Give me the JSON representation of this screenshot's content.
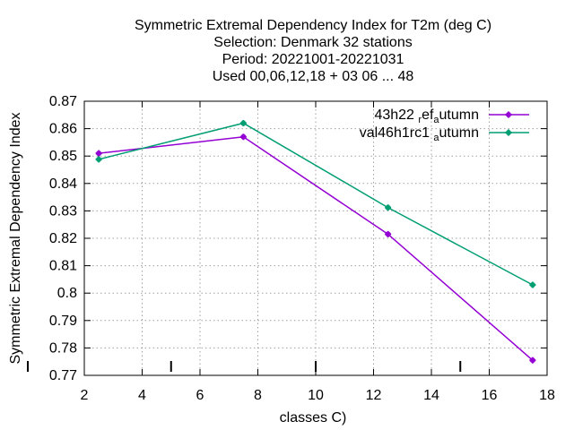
{
  "chart_data": {
    "type": "line",
    "title_lines": [
      "Symmetric Extremal Dependency Index  for T2m (deg C)",
      "Selection: Denmark     32 stations",
      "Period: 20221001-20221031",
      "Used  00,06,12,18  + 03 06 ... 48"
    ],
    "xlabel": "classes C)",
    "ylabel": "Symmetric Extremal Dependency Index",
    "xlim": [
      2,
      18
    ],
    "ylim": [
      0.77,
      0.87
    ],
    "xticks": [
      "2",
      "4",
      "6",
      "8",
      "10",
      "12",
      "14",
      "16",
      "18"
    ],
    "yticks": [
      "0.77",
      "0.78",
      "0.79",
      "0.8",
      "0.81",
      "0.82",
      "0.83",
      "0.84",
      "0.85",
      "0.86",
      "0.87"
    ],
    "grid": true,
    "legend_position": "top-right",
    "series": [
      {
        "name": "43h22",
        "name_sub1": "r",
        "name_mid": "ef",
        "name_sub2": "a",
        "name_end": "utumn",
        "color": "#9400d3",
        "x": [
          2.5,
          7.5,
          12.5,
          17.5
        ],
        "y": [
          0.851,
          0.857,
          0.8215,
          0.7755
        ]
      },
      {
        "name": "val46h1rc1",
        "name_sub1": "",
        "name_mid": "",
        "name_sub2": "a",
        "name_end": "utumn",
        "color": "#009e73",
        "x": [
          2.5,
          7.5,
          12.5,
          17.5
        ],
        "y": [
          0.8488,
          0.862,
          0.8312,
          0.803
        ]
      }
    ],
    "class_markers_x": [
      5,
      10,
      15
    ]
  }
}
